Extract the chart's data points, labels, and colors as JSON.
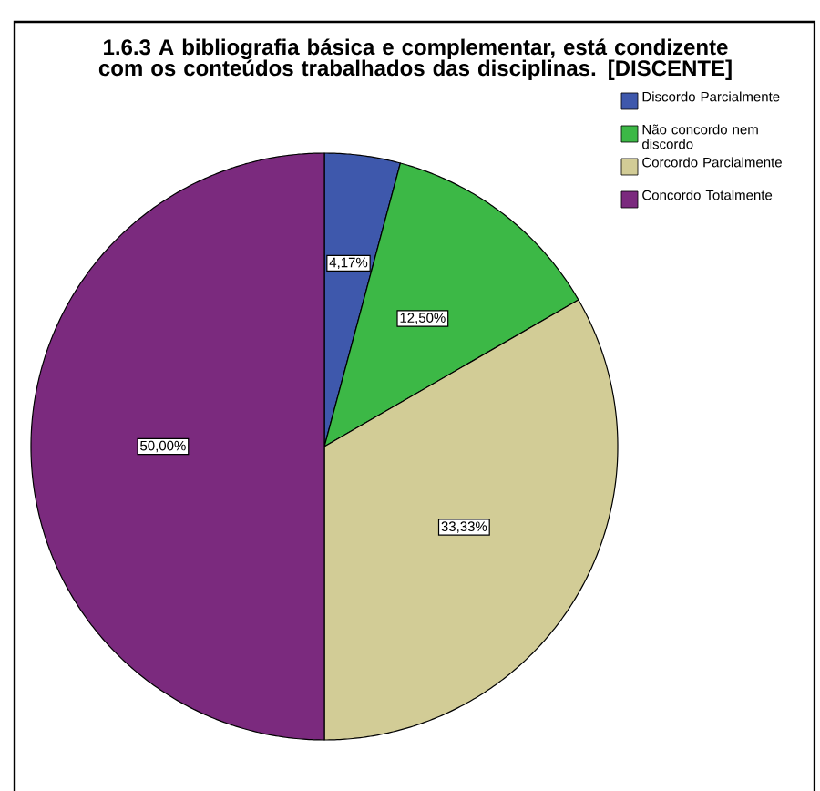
{
  "chart_data": {
    "type": "pie",
    "title": "1.6.3 A bibliografia básica e complementar, está condizente com os conteúdos trabalhados das disciplinas.  [DISCENTE]",
    "categories": [
      "Discordo Parcialmente",
      "Não concordo nem discordo",
      "Corcordo Parcialmente",
      "Concordo Totalmente"
    ],
    "values": [
      4.17,
      12.5,
      33.33,
      50.0
    ],
    "value_labels": [
      "4,17%",
      "12,50%",
      "33,33%",
      "50,00%"
    ],
    "colors": [
      "#3e58ac",
      "#3cb846",
      "#d2cc96",
      "#7b2a7e"
    ],
    "legend": "top right"
  }
}
